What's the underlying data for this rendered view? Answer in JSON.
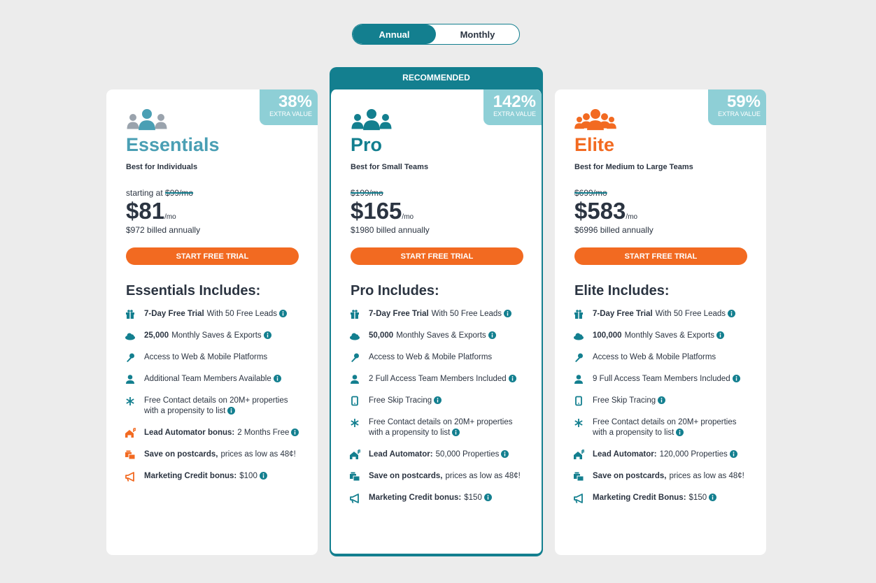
{
  "toggle": {
    "options": [
      "Annual",
      "Monthly"
    ]
  },
  "plans": [
    {
      "name": "Essentials",
      "color": "#4a9fb4",
      "tagline": "Best for Individuals",
      "badge": {
        "value": "38%",
        "label": "EXTRA VALUE"
      },
      "price_prefix": "starting at",
      "old_price": "$99/mo",
      "price": "$81",
      "per": "/mo",
      "billed": "$972 billed annually",
      "cta": "START FREE TRIAL",
      "includes_title": "Essentials Includes:",
      "features": [
        {
          "bold": "7-Day Free Trial",
          "text": "With 50 Free Leads"
        },
        {
          "bold": "25,000",
          "text": "Monthly Saves & Exports"
        },
        {
          "text": "Access to Web & Mobile Platforms"
        },
        {
          "text": "Additional Team Members Available"
        },
        {
          "text": "Free Contact details on 20M+ properties with a propensity to list"
        },
        {
          "bold": "Lead Automator bonus:",
          "text": "2 Months Free"
        },
        {
          "bold": "Save on postcards,",
          "text": "prices as low as 48¢!"
        },
        {
          "bold": "Marketing Credit bonus:",
          "text": "$100"
        }
      ]
    },
    {
      "name": "Pro",
      "color": "#137f8f",
      "ribbon": "RECOMMENDED",
      "tagline": "Best for Small Teams",
      "badge": {
        "value": "142%",
        "label": "EXTRA VALUE"
      },
      "old_price": "$199/mo",
      "price": "$165",
      "per": "/mo",
      "billed": "$1980 billed annually",
      "cta": "START FREE TRIAL",
      "includes_title": "Pro Includes:",
      "features": [
        {
          "bold": "7-Day Free Trial",
          "text": "With 50 Free Leads"
        },
        {
          "bold": "50,000",
          "text": "Monthly Saves & Exports"
        },
        {
          "text": "Access to Web & Mobile Platforms"
        },
        {
          "text": "2 Full Access Team Members Included"
        },
        {
          "text": "Free Skip Tracing"
        },
        {
          "text": "Free Contact details on 20M+ properties with a propensity to list"
        },
        {
          "bold": "Lead Automator:",
          "text": "50,000 Properties"
        },
        {
          "bold": "Save on postcards,",
          "text": "prices as low as 48¢!"
        },
        {
          "bold": "Marketing Credit bonus:",
          "text": "$150"
        }
      ]
    },
    {
      "name": "Elite",
      "color": "#f26a21",
      "tagline": "Best for Medium to Large Teams",
      "badge": {
        "value": "59%",
        "label": "EXTRA VALUE"
      },
      "old_price": "$699/mo",
      "price": "$583",
      "per": "/mo",
      "billed": "$6996 billed annually",
      "cta": "START FREE TRIAL",
      "includes_title": "Elite Includes:",
      "features": [
        {
          "bold": "7-Day Free Trial",
          "text": "With 50 Free Leads"
        },
        {
          "bold": "100,000",
          "text": "Monthly Saves & Exports"
        },
        {
          "text": "Access to Web & Mobile Platforms"
        },
        {
          "text": "9 Full Access Team Members Included"
        },
        {
          "text": "Free Skip Tracing"
        },
        {
          "text": "Free Contact details on 20M+ properties with a propensity to list"
        },
        {
          "bold": "Lead Automator:",
          "text": "120,000 Properties"
        },
        {
          "bold": "Save on postcards,",
          "text": "prices as low as 48¢!"
        },
        {
          "bold": "Marketing Credit Bonus:",
          "text": "$150"
        }
      ]
    }
  ]
}
